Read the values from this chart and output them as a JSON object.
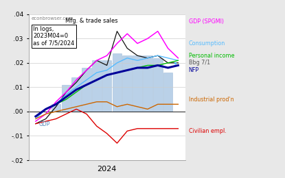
{
  "watermark": "econbrowser.com",
  "note_text": "In logs,\n2023M04=0\nas of 7/5/2024",
  "xlabel": "2024",
  "ylim": [
    -0.02,
    0.04
  ],
  "yticks": [
    -0.02,
    -0.01,
    0.0,
    0.01,
    0.02,
    0.03,
    0.04
  ],
  "ytick_labels": [
    "-.02",
    "-.01",
    ".00",
    ".01",
    ".02",
    ".03",
    ".04"
  ],
  "background_color": "#e8e8e8",
  "plot_bg": "#ffffff",
  "x_months": [
    0,
    1,
    2,
    3,
    4,
    5,
    6,
    7,
    8,
    9,
    10,
    11,
    12,
    13,
    14
  ],
  "bar_heights": [
    0.0,
    0.0,
    0.003,
    0.011,
    0.014,
    0.018,
    0.021,
    0.021,
    0.024,
    0.023,
    0.023,
    0.023,
    0.022,
    0.016,
    0.0
  ],
  "bar_color": "#6699cc",
  "bar_alpha": 0.45,
  "mfg_trade_sales": [
    -0.005,
    -0.003,
    0.002,
    0.008,
    0.012,
    0.017,
    0.021,
    0.019,
    0.033,
    0.026,
    0.023,
    0.022,
    0.023,
    0.02,
    0.02
  ],
  "mfg_trade_color": "#111111",
  "gdp_spgmi": [
    -0.004,
    -0.001,
    0.004,
    0.008,
    0.013,
    0.017,
    0.021,
    0.023,
    0.028,
    0.032,
    0.028,
    0.03,
    0.033,
    0.026,
    0.022
  ],
  "gdp_spgmi_color": "#ff00ff",
  "consumption": [
    -0.003,
    0.001,
    0.003,
    0.007,
    0.01,
    0.013,
    0.016,
    0.017,
    0.02,
    0.022,
    0.021,
    0.022,
    0.023,
    0.022,
    0.021
  ],
  "consumption_color": "#55bbff",
  "personal_income": [
    -0.002,
    0.001,
    0.003,
    0.005,
    0.008,
    0.011,
    0.013,
    0.015,
    0.016,
    0.017,
    0.018,
    0.019,
    0.019,
    0.02,
    0.021
  ],
  "personal_income_color": "#00bb00",
  "nfp": [
    -0.002,
    0.001,
    0.003,
    0.006,
    0.009,
    0.011,
    0.013,
    0.015,
    0.016,
    0.017,
    0.018,
    0.018,
    0.019,
    0.018,
    0.019
  ],
  "nfp_color": "#000099",
  "nfp_linewidth": 2.2,
  "industrial_prod": [
    -0.003,
    -0.001,
    0.0,
    0.001,
    0.002,
    0.003,
    0.004,
    0.004,
    0.002,
    0.003,
    0.002,
    0.001,
    0.003,
    0.003,
    0.003
  ],
  "industrial_prod_color": "#cc6600",
  "civilian_empl": [
    -0.005,
    -0.004,
    -0.003,
    -0.001,
    0.001,
    -0.001,
    -0.006,
    -0.009,
    -0.013,
    -0.008,
    -0.007,
    -0.007,
    -0.007,
    -0.007,
    -0.007
  ],
  "civilian_empl_color": "#dd0000",
  "mfg_label": "Mfg. & trade sales",
  "gdp_label": "GDP (SPGMI)",
  "consumption_label": "Consumption",
  "pi_label": "Personal income",
  "bbg_label": "Bbg 7/1",
  "nfp_label": "NFP",
  "indprod_label": "Industrial prod'n",
  "civempl_label": "Civilian empl.",
  "gdp_bar_label": "GDP"
}
